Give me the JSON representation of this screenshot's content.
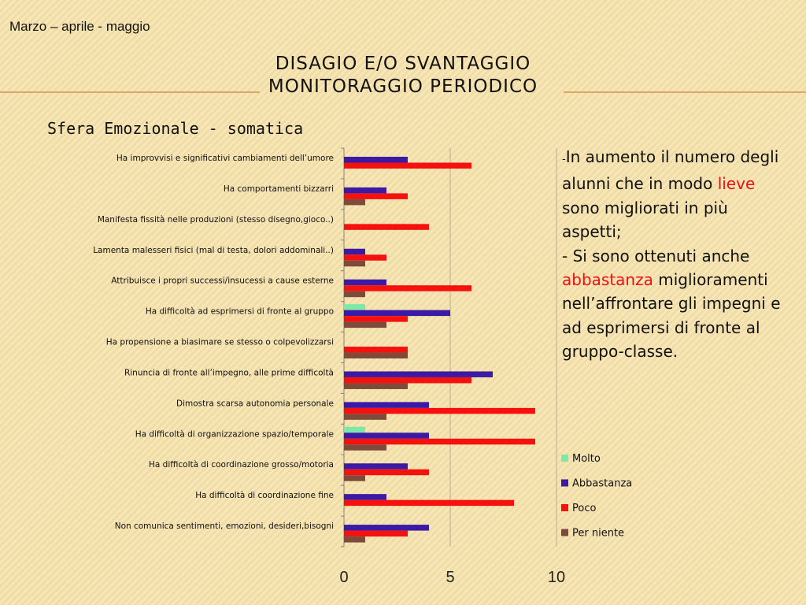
{
  "header": {
    "date_range": "Marzo – aprile - maggio",
    "title_line1": "DISAGIO E/O SVANTAGGIO",
    "title_line2": "MONITORAGGIO PERIODICO",
    "subtitle": "Sfera Emozionale - somatica"
  },
  "notes": {
    "dash1": "-",
    "p1_a": "In aumento il numero degli alunni che in modo ",
    "p1_hl": "lieve",
    "p1_b": " sono migliorati in più aspetti;",
    "p2_a": "- Si sono ottenuti anche ",
    "p2_hl": "abbastanza",
    "p2_b": " miglioramenti nell’affrontare gli impegni e ad esprimersi di fronte al gruppo-classe."
  },
  "colors": {
    "accent_rule": "#d9a86a",
    "highlight_text": "#e8101a"
  },
  "chart_data": {
    "type": "bar",
    "orientation": "horizontal",
    "categories": [
      "Ha improvvisi e significativi cambiamenti dell’umore",
      "Ha comportamenti bizzarri",
      "Manifesta fissità nelle produzioni (stesso disegno,gioco..)",
      "Lamenta malesseri fisici (mal di testa, dolori addominali..)",
      "Attribuisce i propri successi/insucessi a cause esterne",
      "Ha difficoltà ad esprimersi di fronte al gruppo",
      "Ha propensione a biasimare se stesso o colpevolizzarsi",
      "Rinuncia di fronte all’impegno, alle prime difficoltà",
      "Dimostra scarsa autonomia personale",
      "Ha difficoltà di organizzazione spazio/temporale",
      "Ha difficoltà di coordinazione grosso/motoria",
      "Ha difficoltà di coordinazione fine",
      "Non comunica sentimenti, emozioni, desideri,bisogni"
    ],
    "series": [
      {
        "name": "Molto",
        "color": "#7de8a8",
        "values": [
          0,
          0,
          0,
          0,
          0,
          1,
          0,
          0,
          0,
          1,
          0,
          0,
          0
        ]
      },
      {
        "name": "Abbastanza",
        "color": "#3b1aa6",
        "values": [
          3,
          2,
          0,
          1,
          2,
          5,
          0,
          7,
          4,
          4,
          3,
          2,
          4
        ]
      },
      {
        "name": "Poco",
        "color": "#f5120e",
        "values": [
          6,
          3,
          4,
          2,
          6,
          3,
          3,
          6,
          9,
          9,
          4,
          8,
          3
        ]
      },
      {
        "name": "Per niente",
        "color": "#7e4b3b",
        "values": [
          0,
          1,
          0,
          1,
          1,
          2,
          3,
          3,
          2,
          2,
          1,
          0,
          1
        ]
      }
    ],
    "xlim": [
      0,
      10
    ],
    "xticks": [
      0,
      5,
      10
    ],
    "legend_position": "right",
    "grid": "vertical"
  }
}
